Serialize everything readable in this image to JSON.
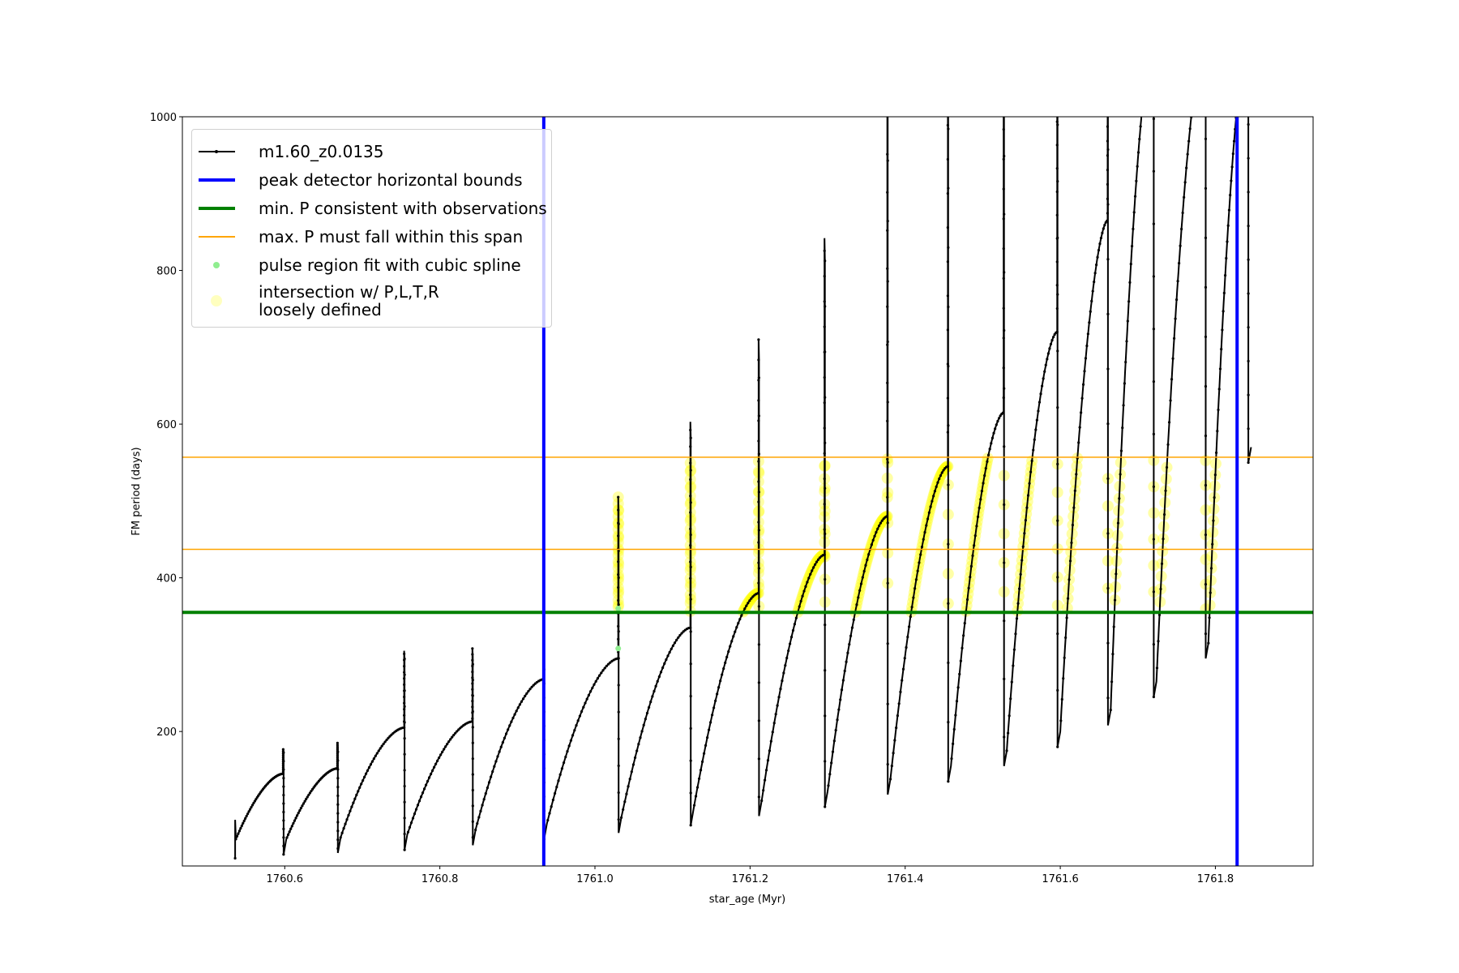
{
  "chart_data": {
    "type": "line",
    "title": "",
    "xlabel": "star_age (Myr)",
    "ylabel": "FM period (days)",
    "xlim": [
      1760.468,
      1761.926
    ],
    "ylim": [
      25,
      1000
    ],
    "xticks": [
      1760.6,
      1760.8,
      1761.0,
      1761.2,
      1761.4,
      1761.6,
      1761.8
    ],
    "xtick_labels": [
      "1760.6",
      "1760.8",
      "1761.0",
      "1761.2",
      "1761.4",
      "1761.6",
      "1761.8"
    ],
    "yticks": [
      200,
      400,
      600,
      800,
      1000
    ],
    "ytick_labels": [
      "200",
      "400",
      "600",
      "800",
      "1000"
    ],
    "grid": false,
    "legend_position": "top-left",
    "series": [
      {
        "name": "m1.60_z0.0135",
        "color": "#000000",
        "start": {
          "age": 1760.536,
          "period": 60,
          "spike_low": 35,
          "spike_high": 85
        },
        "cycles": [
          {
            "drop_age": 1760.598,
            "peak": 145,
            "spike": 178,
            "trough": 60
          },
          {
            "drop_age": 1760.668,
            "peak": 152,
            "spike": 185,
            "trough": 62
          },
          {
            "drop_age": 1760.754,
            "peak": 205,
            "spike": 305,
            "trough": 66
          },
          {
            "drop_age": 1760.842,
            "peak": 213,
            "spike": 308,
            "trough": 72
          },
          {
            "drop_age": 1760.934,
            "peak": 268,
            "spike": 290,
            "trough": 80
          },
          {
            "drop_age": 1761.03,
            "peak": 295,
            "spike": 505,
            "trough": 88
          },
          {
            "drop_age": 1761.123,
            "peak": 335,
            "spike": 603,
            "trough": 98
          },
          {
            "drop_age": 1761.211,
            "peak": 380,
            "spike": 710,
            "trough": 110
          },
          {
            "drop_age": 1761.296,
            "peak": 430,
            "spike": 842,
            "trough": 122
          },
          {
            "drop_age": 1761.377,
            "peak": 480,
            "spike": 1100,
            "trough": 138
          },
          {
            "drop_age": 1761.455,
            "peak": 545,
            "spike": 1100,
            "trough": 155
          },
          {
            "drop_age": 1761.527,
            "peak": 615,
            "spike": 1100,
            "trough": 175
          },
          {
            "drop_age": 1761.596,
            "peak": 720,
            "spike": 1100,
            "trough": 200
          },
          {
            "drop_age": 1761.661,
            "peak": 865,
            "spike": 1100,
            "trough": 228
          },
          {
            "drop_age": 1761.72,
            "peak": 1100,
            "spike": 1100,
            "trough": 265
          },
          {
            "drop_age": 1761.787,
            "peak": 1100,
            "spike": 1100,
            "trough": 315
          },
          {
            "drop_age": 1761.842,
            "peak": 1100,
            "spike": 1100,
            "trough": 570
          }
        ]
      }
    ],
    "vlines": [
      {
        "name": "peak detector horizontal bounds",
        "x": 1760.934,
        "color": "#0000ff"
      },
      {
        "name": "peak detector horizontal bounds",
        "x": 1761.828,
        "color": "#0000ff"
      }
    ],
    "hlines": [
      {
        "name": "min. P consistent with observations",
        "y": 355,
        "color": "#008000"
      },
      {
        "name": "max. P must fall within this span",
        "y": 437,
        "color": "#ffa500"
      },
      {
        "name": "max. P must fall within this span",
        "y": 557,
        "color": "#ffa500"
      }
    ],
    "highlight": {
      "name": "intersection w/ P,L,T,R\nloosely defined",
      "color": "#ffff00",
      "range": [
        355,
        557
      ]
    },
    "spline_points": {
      "name": "pulse region fit with cubic spline",
      "color": "#90ee90",
      "points": [
        [
          1761.03,
          308
        ],
        [
          1761.03,
          360
        ]
      ]
    },
    "legend": [
      "m1.60_z0.0135",
      "peak detector horizontal bounds",
      "min. P consistent with observations",
      "max. P must fall within this span",
      "pulse region fit with cubic spline",
      "intersection w/ P,L,T,R\nloosely defined"
    ]
  }
}
